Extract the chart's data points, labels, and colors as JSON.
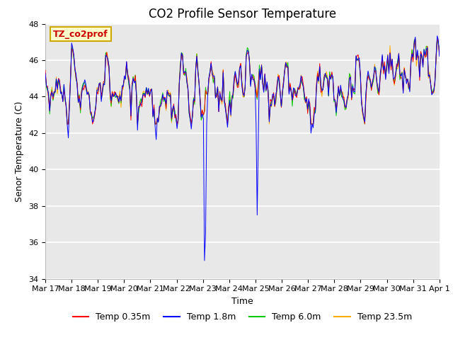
{
  "title": "CO2 Profile Sensor Temperature",
  "ylabel": "Senor Temperature (C)",
  "xlabel": "Time",
  "ylim": [
    34,
    48
  ],
  "yticks": [
    34,
    36,
    38,
    40,
    42,
    44,
    46,
    48
  ],
  "annotation_text": "TZ_co2prof",
  "annotation_color": "#cc0000",
  "annotation_bg": "#ffffcc",
  "annotation_border": "#ccaa00",
  "colors": {
    "Temp 0.35m": "#ff0000",
    "Temp 1.8m": "#0000ff",
    "Temp 6.0m": "#00cc00",
    "Temp 23.5m": "#ffaa00"
  },
  "plot_bg": "#e8e8e8",
  "n_points": 360,
  "base_temp": 44.5,
  "date_labels": [
    "Mar 17",
    "Mar 18",
    "Mar 19",
    "Mar 20",
    "Mar 21",
    "Mar 22",
    "Mar 23",
    "Mar 24",
    "Mar 25",
    "Mar 26",
    "Mar 27",
    "Mar 28",
    "Mar 29",
    "Mar 30",
    "Mar 31",
    "Apr 1"
  ],
  "title_fontsize": 12,
  "axis_fontsize": 9,
  "tick_fontsize": 8,
  "legend_fontsize": 9,
  "linewidth": 0.7
}
